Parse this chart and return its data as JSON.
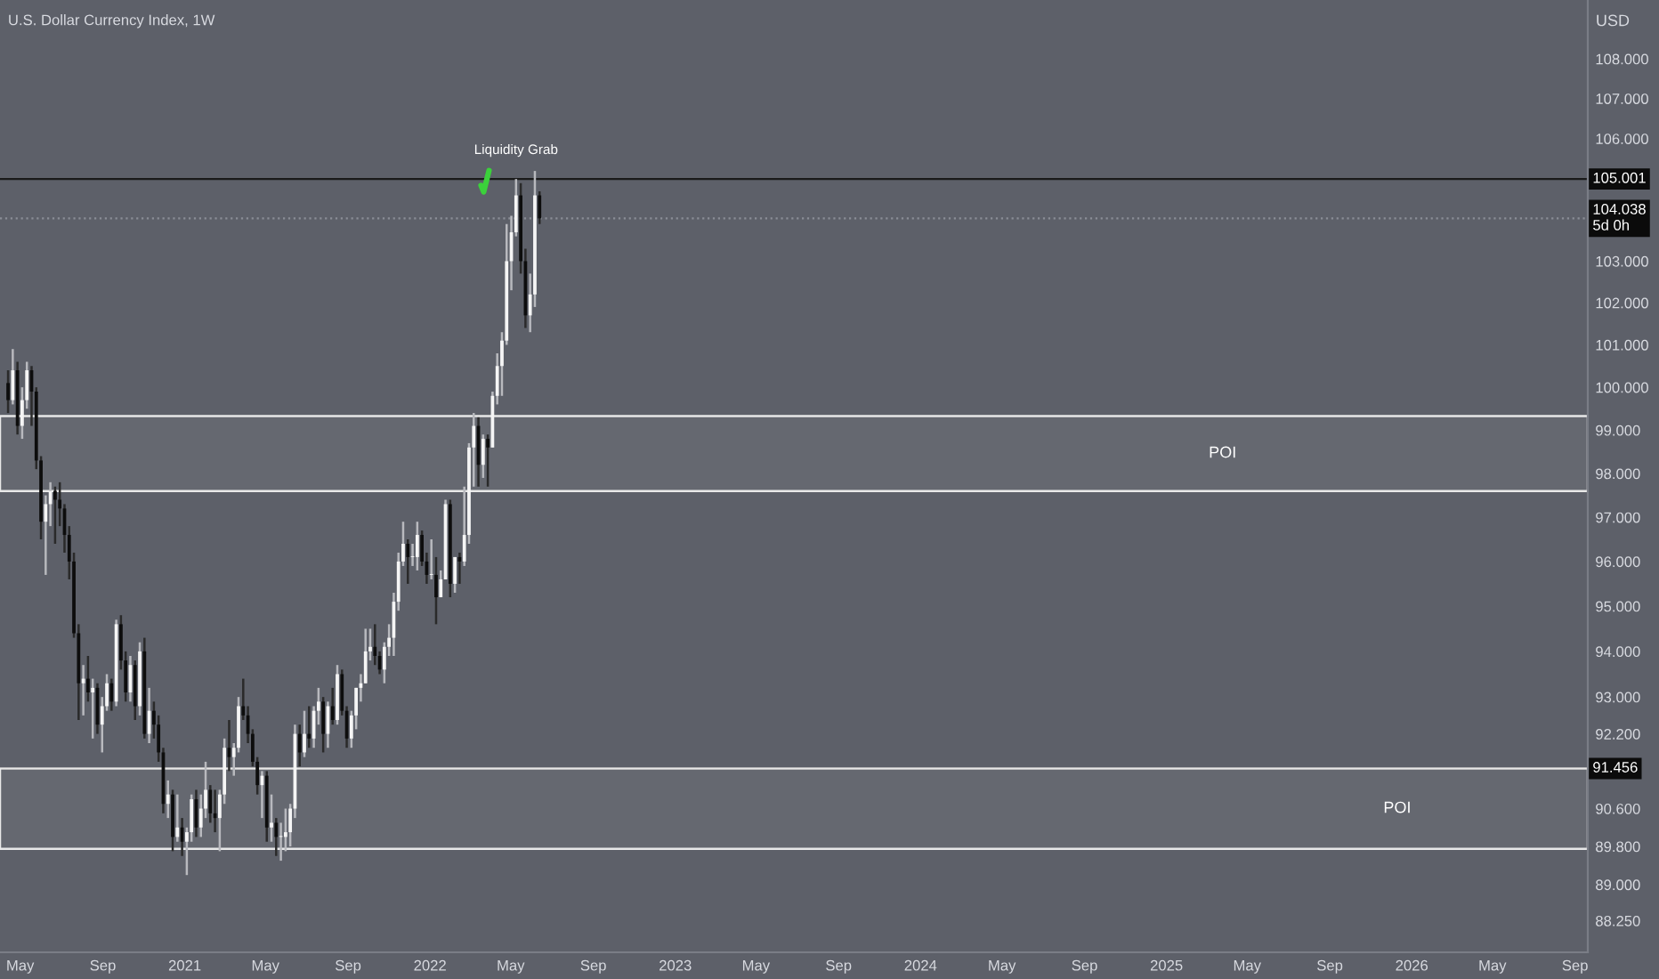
{
  "chart_data": {
    "type": "candlestick",
    "title": "U.S. Dollar Currency Index, 1W",
    "ylabel": "USD",
    "x": [
      "2020-04-13",
      "2020-04-20",
      "2020-04-27",
      "2020-05-04",
      "2020-05-11",
      "2020-05-18",
      "2020-05-25",
      "2020-06-01",
      "2020-06-08",
      "2020-06-15",
      "2020-06-22",
      "2020-06-29",
      "2020-07-06",
      "2020-07-13",
      "2020-07-20",
      "2020-07-27",
      "2020-08-03",
      "2020-08-10",
      "2020-08-17",
      "2020-08-24",
      "2020-08-31",
      "2020-09-07",
      "2020-09-14",
      "2020-09-21",
      "2020-09-28",
      "2020-10-05",
      "2020-10-12",
      "2020-10-19",
      "2020-10-26",
      "2020-11-02",
      "2020-11-09",
      "2020-11-16",
      "2020-11-23",
      "2020-11-30",
      "2020-12-07",
      "2020-12-14",
      "2020-12-21",
      "2020-12-28",
      "2021-01-04",
      "2021-01-11",
      "2021-01-18",
      "2021-01-25",
      "2021-02-01",
      "2021-02-08",
      "2021-02-15",
      "2021-02-22",
      "2021-03-01",
      "2021-03-08",
      "2021-03-15",
      "2021-03-22",
      "2021-03-29",
      "2021-04-05",
      "2021-04-12",
      "2021-04-19",
      "2021-04-26",
      "2021-05-03",
      "2021-05-10",
      "2021-05-17",
      "2021-05-24",
      "2021-05-31",
      "2021-06-07",
      "2021-06-14",
      "2021-06-21",
      "2021-06-28",
      "2021-07-05",
      "2021-07-12",
      "2021-07-19",
      "2021-07-26",
      "2021-08-02",
      "2021-08-09",
      "2021-08-16",
      "2021-08-23",
      "2021-08-30",
      "2021-09-06",
      "2021-09-13",
      "2021-09-20",
      "2021-09-27",
      "2021-10-04",
      "2021-10-11",
      "2021-10-18",
      "2021-10-25",
      "2021-11-01",
      "2021-11-08",
      "2021-11-15",
      "2021-11-22",
      "2021-11-29",
      "2021-12-06",
      "2021-12-13",
      "2021-12-20",
      "2021-12-27",
      "2022-01-03",
      "2022-01-10",
      "2022-01-17",
      "2022-01-24",
      "2022-01-31",
      "2022-02-07",
      "2022-02-14",
      "2022-02-21",
      "2022-02-28",
      "2022-03-07",
      "2022-03-14",
      "2022-03-21",
      "2022-03-28",
      "2022-04-04",
      "2022-04-11",
      "2022-04-18",
      "2022-04-25",
      "2022-05-02",
      "2022-05-09",
      "2022-05-16",
      "2022-05-23",
      "2022-05-30",
      "2022-06-06",
      "2022-06-13"
    ],
    "ohlc": [
      [
        100.1,
        100.4,
        99.4,
        99.7
      ],
      [
        99.7,
        100.9,
        99.6,
        100.4
      ],
      [
        100.4,
        100.6,
        98.9,
        99.1
      ],
      [
        99.1,
        100.0,
        98.8,
        99.7
      ],
      [
        99.7,
        100.6,
        99.5,
        100.4
      ],
      [
        100.4,
        100.5,
        99.1,
        99.9
      ],
      [
        99.9,
        100.0,
        98.1,
        98.3
      ],
      [
        98.3,
        98.4,
        96.5,
        96.9
      ],
      [
        96.9,
        97.5,
        95.7,
        97.3
      ],
      [
        97.3,
        97.8,
        96.8,
        97.6
      ],
      [
        97.6,
        97.7,
        96.4,
        97.4
      ],
      [
        97.4,
        97.8,
        96.8,
        97.2
      ],
      [
        97.2,
        97.3,
        96.2,
        96.6
      ],
      [
        96.6,
        96.8,
        95.6,
        96.0
      ],
      [
        96.0,
        96.2,
        94.3,
        94.4
      ],
      [
        94.4,
        94.6,
        92.5,
        93.3
      ],
      [
        93.3,
        93.7,
        92.6,
        93.4
      ],
      [
        93.4,
        93.9,
        92.9,
        93.1
      ],
      [
        93.1,
        93.4,
        92.1,
        93.2
      ],
      [
        93.2,
        93.3,
        92.2,
        92.4
      ],
      [
        92.4,
        93.0,
        91.8,
        92.8
      ],
      [
        92.8,
        93.5,
        92.7,
        93.3
      ],
      [
        93.3,
        93.4,
        92.7,
        92.9
      ],
      [
        92.9,
        94.7,
        92.8,
        94.6
      ],
      [
        94.6,
        94.8,
        93.6,
        93.8
      ],
      [
        93.8,
        94.0,
        92.9,
        93.1
      ],
      [
        93.1,
        93.9,
        92.9,
        93.7
      ],
      [
        93.7,
        93.8,
        92.5,
        92.8
      ],
      [
        92.8,
        94.2,
        92.6,
        94.0
      ],
      [
        94.0,
        94.3,
        92.1,
        92.2
      ],
      [
        92.2,
        93.2,
        92.0,
        92.7
      ],
      [
        92.7,
        92.9,
        92.1,
        92.4
      ],
      [
        92.4,
        92.6,
        91.6,
        91.8
      ],
      [
        91.8,
        91.9,
        90.5,
        90.7
      ],
      [
        90.7,
        91.2,
        90.4,
        90.9
      ],
      [
        90.9,
        91.0,
        89.7,
        90.0
      ],
      [
        90.0,
        90.9,
        89.9,
        90.2
      ],
      [
        90.2,
        90.4,
        89.6,
        89.9
      ],
      [
        89.9,
        90.2,
        89.2,
        90.1
      ],
      [
        90.1,
        90.9,
        89.9,
        90.8
      ],
      [
        90.8,
        91.0,
        90.0,
        90.2
      ],
      [
        90.2,
        90.9,
        90.0,
        90.6
      ],
      [
        90.6,
        91.6,
        90.4,
        91.0
      ],
      [
        91.0,
        91.1,
        90.3,
        90.5
      ],
      [
        90.5,
        91.0,
        90.1,
        90.4
      ],
      [
        90.4,
        91.0,
        89.7,
        90.9
      ],
      [
        90.9,
        92.1,
        90.7,
        91.9
      ],
      [
        91.9,
        92.5,
        91.4,
        91.7
      ],
      [
        91.7,
        92.0,
        91.3,
        91.9
      ],
      [
        91.9,
        93.0,
        91.8,
        92.8
      ],
      [
        92.8,
        93.4,
        92.5,
        92.6
      ],
      [
        92.6,
        92.8,
        92.0,
        92.2
      ],
      [
        92.2,
        92.3,
        91.5,
        91.6
      ],
      [
        91.6,
        91.7,
        90.9,
        91.1
      ],
      [
        91.1,
        91.4,
        90.4,
        91.3
      ],
      [
        91.3,
        91.4,
        89.9,
        90.2
      ],
      [
        90.2,
        90.9,
        89.9,
        90.3
      ],
      [
        90.3,
        90.4,
        89.6,
        90.0
      ],
      [
        90.0,
        90.3,
        89.5,
        90.0
      ],
      [
        90.0,
        90.6,
        89.7,
        90.1
      ],
      [
        90.1,
        90.7,
        89.8,
        90.6
      ],
      [
        90.6,
        92.4,
        90.4,
        92.2
      ],
      [
        92.2,
        92.4,
        91.5,
        91.8
      ],
      [
        91.8,
        92.7,
        91.7,
        92.2
      ],
      [
        92.2,
        92.8,
        91.9,
        92.1
      ],
      [
        92.1,
        92.8,
        91.9,
        92.7
      ],
      [
        92.7,
        93.2,
        92.4,
        92.9
      ],
      [
        92.9,
        93.0,
        91.8,
        92.2
      ],
      [
        92.2,
        92.9,
        91.9,
        92.8
      ],
      [
        92.8,
        93.2,
        92.4,
        92.5
      ],
      [
        92.5,
        93.7,
        92.4,
        93.5
      ],
      [
        93.5,
        93.6,
        92.6,
        92.7
      ],
      [
        92.7,
        92.8,
        91.9,
        92.1
      ],
      [
        92.1,
        92.7,
        91.9,
        92.6
      ],
      [
        92.6,
        93.2,
        92.3,
        93.2
      ],
      [
        93.2,
        93.5,
        92.9,
        93.3
      ],
      [
        93.3,
        94.5,
        93.3,
        94.0
      ],
      [
        94.0,
        94.5,
        93.8,
        94.1
      ],
      [
        94.1,
        94.6,
        93.7,
        93.9
      ],
      [
        93.9,
        94.0,
        93.5,
        93.6
      ],
      [
        93.6,
        94.2,
        93.3,
        94.1
      ],
      [
        94.1,
        94.6,
        93.9,
        94.3
      ],
      [
        94.3,
        95.3,
        93.9,
        95.1
      ],
      [
        95.1,
        96.2,
        94.9,
        96.0
      ],
      [
        96.0,
        96.9,
        95.9,
        96.4
      ],
      [
        96.4,
        96.5,
        95.5,
        96.1
      ],
      [
        96.1,
        96.4,
        95.9,
        96.1
      ],
      [
        96.1,
        96.9,
        95.8,
        96.6
      ],
      [
        96.6,
        96.7,
        95.9,
        96.0
      ],
      [
        96.0,
        96.2,
        95.5,
        95.7
      ],
      [
        95.7,
        96.5,
        95.6,
        95.7
      ],
      [
        95.7,
        96.1,
        94.6,
        95.2
      ],
      [
        95.2,
        95.8,
        95.2,
        95.6
      ],
      [
        95.6,
        97.4,
        95.6,
        97.3
      ],
      [
        97.3,
        97.4,
        95.2,
        95.5
      ],
      [
        95.5,
        96.1,
        95.3,
        96.1
      ],
      [
        96.1,
        96.2,
        95.5,
        96.0
      ],
      [
        96.0,
        97.7,
        95.9,
        96.6
      ],
      [
        96.6,
        98.7,
        96.4,
        98.6
      ],
      [
        98.6,
        99.4,
        97.7,
        99.1
      ],
      [
        99.1,
        99.3,
        97.7,
        98.2
      ],
      [
        98.2,
        98.9,
        97.9,
        98.8
      ],
      [
        98.8,
        98.9,
        97.7,
        98.6
      ],
      [
        98.6,
        99.9,
        98.6,
        99.8
      ],
      [
        99.8,
        100.8,
        99.6,
        100.5
      ],
      [
        100.5,
        101.3,
        99.8,
        101.1
      ],
      [
        101.1,
        103.9,
        101.0,
        103.0
      ],
      [
        103.0,
        104.1,
        102.3,
        103.7
      ],
      [
        103.7,
        105.001,
        103.6,
        104.6
      ],
      [
        104.6,
        104.9,
        102.7,
        103.0
      ],
      [
        103.0,
        103.3,
        101.4,
        101.7
      ],
      [
        101.7,
        102.7,
        101.3,
        102.2
      ],
      [
        102.2,
        105.2,
        101.9,
        104.6
      ],
      [
        104.6,
        104.7,
        103.9,
        104.038
      ]
    ],
    "log": "y",
    "ylim": [
      87.6,
      109.5
    ],
    "yticks": [
      {
        "value": 88.25,
        "label": "88.250"
      },
      {
        "value": 89,
        "label": "89.000"
      },
      {
        "value": 89.8,
        "label": "89.800"
      },
      {
        "value": 90.6,
        "label": "90.600"
      },
      {
        "value": 92.2,
        "label": "92.200"
      },
      {
        "value": 93,
        "label": "93.000"
      },
      {
        "value": 94,
        "label": "94.000"
      },
      {
        "value": 95,
        "label": "95.000"
      },
      {
        "value": 96,
        "label": "96.000"
      },
      {
        "value": 97,
        "label": "97.000"
      },
      {
        "value": 98,
        "label": "98.000"
      },
      {
        "value": 99,
        "label": "99.000"
      },
      {
        "value": 100,
        "label": "100.000"
      },
      {
        "value": 101,
        "label": "101.000"
      },
      {
        "value": 102,
        "label": "102.000"
      },
      {
        "value": 103,
        "label": "103.000"
      },
      {
        "value": 106,
        "label": "106.000"
      },
      {
        "value": 107,
        "label": "107.000"
      },
      {
        "value": 108,
        "label": "108.000"
      }
    ],
    "xlim": [
      "2020-04-01",
      "2026-09-20"
    ],
    "xticks": [
      {
        "value": "2020-05-01",
        "label": "May"
      },
      {
        "value": "2020-09-01",
        "label": "Sep"
      },
      {
        "value": "2021-01-01",
        "label": "2021"
      },
      {
        "value": "2021-05-01",
        "label": "May"
      },
      {
        "value": "2021-09-01",
        "label": "Sep"
      },
      {
        "value": "2022-01-01",
        "label": "2022"
      },
      {
        "value": "2022-05-01",
        "label": "May"
      },
      {
        "value": "2022-09-01",
        "label": "Sep"
      },
      {
        "value": "2023-01-01",
        "label": "2023"
      },
      {
        "value": "2023-05-01",
        "label": "May"
      },
      {
        "value": "2023-09-01",
        "label": "Sep"
      },
      {
        "value": "2024-01-01",
        "label": "2024"
      },
      {
        "value": "2024-05-01",
        "label": "May"
      },
      {
        "value": "2024-09-01",
        "label": "Sep"
      },
      {
        "value": "2025-01-01",
        "label": "2025"
      },
      {
        "value": "2025-05-01",
        "label": "May"
      },
      {
        "value": "2025-09-01",
        "label": "Sep"
      },
      {
        "value": "2026-01-01",
        "label": "2026"
      },
      {
        "value": "2026-05-01",
        "label": "May"
      },
      {
        "value": "2026-09-01",
        "label": "Sep"
      }
    ],
    "ref_lines": [
      {
        "axis": "y",
        "value": 105.001,
        "label": "105.001",
        "color": "#1a1a1a",
        "line_style": "solid"
      },
      {
        "axis": "y",
        "value": 91.456,
        "label": "91.456",
        "color": "#1a1a1a",
        "line_style": "solid"
      },
      {
        "axis": "y",
        "value": 104.038,
        "label": "104.038\n5d 0h",
        "color": "#8a8d96",
        "line_style": "dotted"
      }
    ],
    "bands": [
      {
        "axis": "y",
        "from": 97.6,
        "to": 99.33,
        "label": "POI",
        "color": "#e8e8e8"
      },
      {
        "axis": "y",
        "from": 89.75,
        "to": 91.456,
        "label": "POI",
        "color": "#e8e8e8"
      }
    ],
    "annotations": [
      {
        "text": "Liquidity Grab",
        "x": "2022-05-09",
        "y": 105.001
      }
    ]
  }
}
